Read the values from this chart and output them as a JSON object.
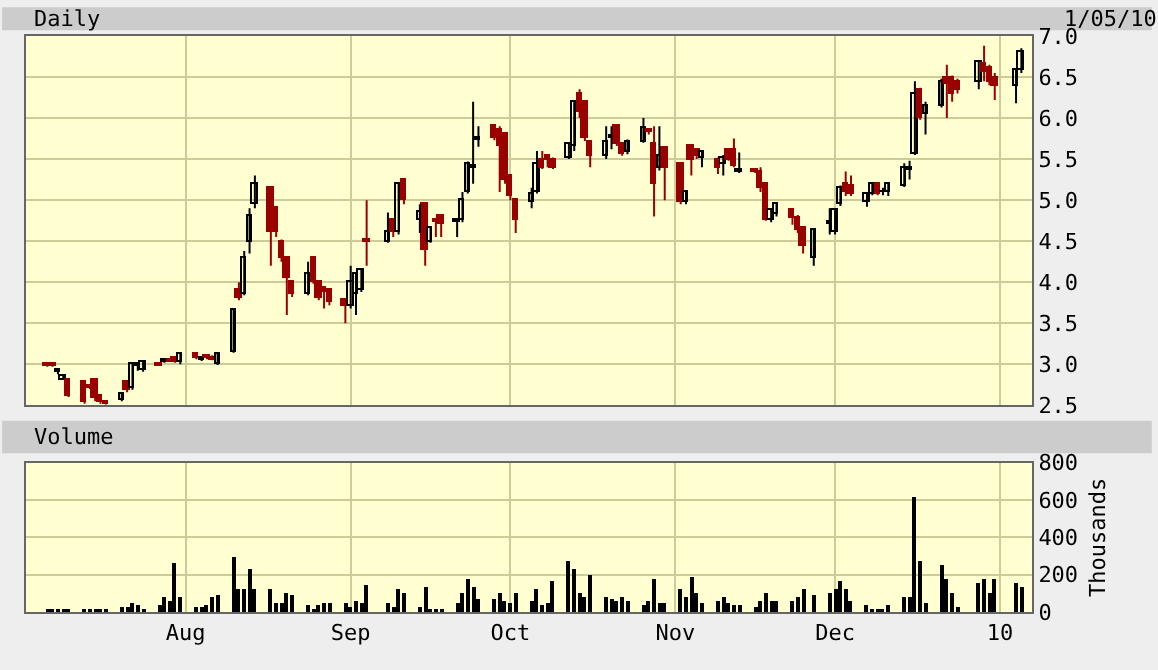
{
  "chart_data": [
    {
      "type": "candlestick",
      "title": "Daily",
      "annotations": [
        "1/05/10"
      ],
      "x": [
        "2009-07-06",
        "2009-07-07",
        "2009-07-08",
        "2009-07-09",
        "2009-07-10",
        "2009-07-13",
        "2009-07-14",
        "2009-07-15",
        "2009-07-16",
        "2009-07-17",
        "2009-07-20",
        "2009-07-21",
        "2009-07-22",
        "2009-07-23",
        "2009-07-24",
        "2009-07-27",
        "2009-07-28",
        "2009-07-29",
        "2009-07-30",
        "2009-07-31",
        "2009-08-03",
        "2009-08-04",
        "2009-08-05",
        "2009-08-06",
        "2009-08-07",
        "2009-08-10",
        "2009-08-11",
        "2009-08-12",
        "2009-08-13",
        "2009-08-14",
        "2009-08-17",
        "2009-08-18",
        "2009-08-19",
        "2009-08-20",
        "2009-08-21",
        "2009-08-24",
        "2009-08-25",
        "2009-08-26",
        "2009-08-27",
        "2009-08-28",
        "2009-08-31",
        "2009-09-01",
        "2009-09-02",
        "2009-09-03",
        "2009-09-04",
        "2009-09-08",
        "2009-09-09",
        "2009-09-10",
        "2009-09-11",
        "2009-09-14",
        "2009-09-15",
        "2009-09-16",
        "2009-09-17",
        "2009-09-18",
        "2009-09-21",
        "2009-09-22",
        "2009-09-23",
        "2009-09-24",
        "2009-09-25",
        "2009-09-28",
        "2009-09-29",
        "2009-09-30",
        "2009-10-01",
        "2009-10-02",
        "2009-10-05",
        "2009-10-06",
        "2009-10-07",
        "2009-10-08",
        "2009-10-09",
        "2009-10-12",
        "2009-10-13",
        "2009-10-14",
        "2009-10-15",
        "2009-10-16",
        "2009-10-19",
        "2009-10-20",
        "2009-10-21",
        "2009-10-22",
        "2009-10-23",
        "2009-10-26",
        "2009-10-27",
        "2009-10-28",
        "2009-10-29",
        "2009-10-30",
        "2009-11-02",
        "2009-11-03",
        "2009-11-04",
        "2009-11-05",
        "2009-11-06",
        "2009-11-09",
        "2009-11-10",
        "2009-11-11",
        "2009-11-12",
        "2009-11-13",
        "2009-11-16",
        "2009-11-17",
        "2009-11-18",
        "2009-11-19",
        "2009-11-20",
        "2009-11-23",
        "2009-11-24",
        "2009-11-25",
        "2009-11-27",
        "2009-11-30",
        "2009-12-01",
        "2009-12-02",
        "2009-12-03",
        "2009-12-04",
        "2009-12-07",
        "2009-12-08",
        "2009-12-09",
        "2009-12-10",
        "2009-12-11",
        "2009-12-14",
        "2009-12-15",
        "2009-12-16",
        "2009-12-17",
        "2009-12-18",
        "2009-12-21",
        "2009-12-22",
        "2009-12-23",
        "2009-12-24",
        "2009-12-28",
        "2009-12-29",
        "2009-12-30",
        "2009-12-31",
        "2010-01-04",
        "2010-01-05"
      ],
      "ohlc": [
        [
          3.0,
          3.02,
          2.97,
          2.98
        ],
        [
          3.0,
          3.02,
          2.97,
          2.98
        ],
        [
          2.91,
          2.95,
          2.88,
          2.93
        ],
        [
          2.82,
          2.87,
          2.81,
          2.86
        ],
        [
          2.8,
          2.81,
          2.6,
          2.62
        ],
        [
          2.78,
          2.8,
          2.52,
          2.54
        ],
        [
          2.74,
          2.76,
          2.7,
          2.72
        ],
        [
          2.8,
          2.82,
          2.55,
          2.58
        ],
        [
          2.62,
          2.63,
          2.52,
          2.54
        ],
        [
          2.53,
          2.54,
          2.51,
          2.52
        ],
        [
          2.56,
          2.66,
          2.55,
          2.65
        ],
        [
          2.78,
          2.8,
          2.66,
          2.68
        ],
        [
          2.7,
          3.02,
          2.69,
          3.0
        ],
        [
          2.98,
          3.02,
          2.92,
          3.0
        ],
        [
          2.92,
          3.03,
          2.91,
          3.02
        ],
        [
          3.0,
          3.01,
          2.98,
          2.99
        ],
        [
          3.03,
          3.06,
          3.02,
          3.05
        ],
        [
          3.06,
          3.07,
          3.03,
          3.04
        ],
        [
          3.08,
          3.1,
          3.02,
          3.04
        ],
        [
          3.02,
          3.15,
          3.0,
          3.12
        ],
        [
          3.12,
          3.15,
          3.06,
          3.08
        ],
        [
          3.05,
          3.09,
          3.04,
          3.08
        ],
        [
          3.09,
          3.1,
          3.06,
          3.07
        ],
        [
          3.08,
          3.11,
          3.05,
          3.06
        ],
        [
          3.0,
          3.14,
          2.99,
          3.12
        ],
        [
          3.15,
          3.66,
          3.14,
          3.65
        ],
        [
          3.9,
          4.0,
          3.78,
          3.82
        ],
        [
          3.85,
          4.38,
          3.84,
          4.3
        ],
        [
          4.5,
          4.9,
          4.35,
          4.8
        ],
        [
          4.95,
          5.3,
          4.9,
          5.2
        ],
        [
          5.15,
          5.17,
          4.2,
          4.6
        ],
        [
          4.9,
          4.92,
          4.55,
          4.6
        ],
        [
          4.5,
          4.52,
          4.25,
          4.3
        ],
        [
          4.3,
          4.32,
          3.6,
          4.05
        ],
        [
          4.0,
          4.02,
          3.82,
          3.85
        ],
        [
          3.85,
          4.25,
          3.84,
          4.1
        ],
        [
          4.3,
          4.32,
          3.98,
          4.0
        ],
        [
          4.0,
          4.02,
          3.78,
          3.8
        ],
        [
          3.92,
          3.93,
          3.68,
          3.88
        ],
        [
          3.9,
          3.92,
          3.72,
          3.75
        ],
        [
          3.78,
          3.8,
          3.5,
          3.72
        ],
        [
          3.7,
          4.2,
          3.68,
          4.0
        ],
        [
          3.85,
          4.12,
          3.6,
          4.1
        ],
        [
          3.9,
          4.17,
          3.88,
          4.15
        ],
        [
          4.52,
          5.0,
          4.2,
          4.48
        ],
        [
          4.5,
          4.85,
          4.48,
          4.6
        ],
        [
          4.75,
          4.78,
          4.55,
          4.6
        ],
        [
          4.6,
          5.22,
          4.58,
          5.2
        ],
        [
          5.25,
          5.27,
          4.95,
          5.0
        ],
        [
          4.75,
          4.95,
          4.6,
          4.85
        ],
        [
          4.95,
          4.97,
          4.2,
          4.4
        ],
        [
          4.5,
          4.68,
          4.48,
          4.65
        ],
        [
          4.76,
          4.77,
          4.55,
          4.74
        ],
        [
          4.8,
          4.82,
          4.55,
          4.7
        ],
        [
          4.74,
          4.78,
          4.55,
          4.76
        ],
        [
          4.75,
          5.1,
          4.73,
          5.0
        ],
        [
          5.1,
          5.47,
          5.08,
          5.45
        ],
        [
          5.38,
          6.2,
          5.2,
          5.41
        ],
        [
          5.74,
          5.9,
          5.65,
          5.76
        ],
        [
          5.9,
          5.92,
          5.73,
          5.75
        ],
        [
          5.85,
          5.9,
          5.1,
          5.65
        ],
        [
          5.8,
          5.82,
          5.2,
          5.25
        ],
        [
          5.3,
          5.32,
          5.0,
          5.05
        ],
        [
          5.0,
          5.02,
          4.6,
          4.75
        ],
        [
          4.98,
          5.15,
          4.9,
          5.08
        ],
        [
          5.1,
          5.6,
          5.08,
          5.45
        ],
        [
          5.5,
          5.6,
          5.38,
          5.4
        ],
        [
          5.53,
          5.55,
          5.4,
          5.5
        ],
        [
          5.5,
          5.52,
          5.38,
          5.4
        ],
        [
          5.52,
          5.7,
          5.5,
          5.68
        ],
        [
          5.65,
          6.22,
          5.6,
          6.2
        ],
        [
          6.3,
          6.35,
          6.0,
          6.08
        ],
        [
          6.2,
          6.22,
          5.72,
          5.75
        ],
        [
          5.7,
          5.72,
          5.4,
          5.55
        ],
        [
          5.55,
          5.9,
          5.5,
          5.72
        ],
        [
          5.76,
          5.9,
          5.62,
          5.78
        ],
        [
          5.9,
          5.92,
          5.66,
          5.68
        ],
        [
          5.68,
          5.7,
          5.54,
          5.56
        ],
        [
          5.58,
          5.74,
          5.56,
          5.72
        ],
        [
          5.72,
          6.0,
          5.7,
          5.88
        ],
        [
          5.86,
          5.88,
          5.8,
          5.84
        ],
        [
          5.68,
          5.9,
          4.8,
          5.2
        ],
        [
          5.38,
          5.9,
          5.36,
          5.55
        ],
        [
          5.63,
          5.65,
          5.0,
          5.38
        ],
        [
          5.43,
          5.45,
          4.95,
          4.98
        ],
        [
          4.98,
          5.12,
          4.95,
          5.1
        ],
        [
          5.65,
          5.67,
          5.3,
          5.5
        ],
        [
          5.6,
          5.62,
          5.5,
          5.55
        ],
        [
          5.52,
          5.6,
          5.4,
          5.58
        ],
        [
          5.5,
          5.52,
          5.32,
          5.4
        ],
        [
          5.45,
          5.55,
          5.3,
          5.52
        ],
        [
          5.6,
          5.62,
          5.48,
          5.5
        ],
        [
          5.6,
          5.75,
          5.4,
          5.42
        ],
        [
          5.34,
          5.58,
          5.33,
          5.36
        ],
        [
          5.36,
          5.38,
          5.33,
          5.35
        ],
        [
          5.35,
          5.4,
          5.1,
          5.15
        ],
        [
          5.2,
          5.22,
          4.75,
          4.76
        ],
        [
          4.75,
          4.9,
          4.73,
          4.88
        ],
        [
          4.83,
          4.96,
          4.8,
          4.95
        ],
        [
          4.88,
          4.9,
          4.7,
          4.78
        ],
        [
          4.78,
          4.82,
          4.6,
          4.63
        ],
        [
          4.65,
          4.67,
          4.35,
          4.45
        ],
        [
          4.3,
          4.65,
          4.2,
          4.63
        ],
        [
          4.72,
          4.9,
          4.58,
          4.74
        ],
        [
          4.6,
          4.9,
          4.58,
          4.88
        ],
        [
          4.95,
          5.18,
          4.93,
          5.15
        ],
        [
          5.2,
          5.35,
          5.05,
          5.1
        ],
        [
          5.18,
          5.3,
          5.05,
          5.07
        ],
        [
          4.98,
          5.1,
          4.92,
          5.08
        ],
        [
          5.08,
          5.22,
          5.06,
          5.2
        ],
        [
          5.2,
          5.22,
          5.06,
          5.08
        ],
        [
          5.09,
          5.15,
          5.06,
          5.11
        ],
        [
          5.1,
          5.22,
          5.05,
          5.2
        ],
        [
          5.18,
          5.45,
          5.16,
          5.4
        ],
        [
          5.37,
          5.48,
          5.25,
          5.39
        ],
        [
          5.57,
          6.45,
          5.55,
          6.3
        ],
        [
          6.35,
          6.37,
          5.98,
          6.0
        ],
        [
          6.05,
          6.2,
          5.8,
          6.15
        ],
        [
          6.15,
          6.48,
          6.13,
          6.45
        ],
        [
          6.5,
          6.65,
          6.0,
          6.42
        ],
        [
          6.5,
          6.52,
          6.2,
          6.3
        ],
        [
          6.43,
          6.48,
          6.3,
          6.33
        ],
        [
          6.45,
          6.7,
          6.35,
          6.68
        ],
        [
          6.65,
          6.88,
          6.45,
          6.55
        ],
        [
          6.6,
          6.65,
          6.4,
          6.43
        ],
        [
          6.5,
          6.55,
          6.22,
          6.4
        ],
        [
          6.38,
          6.6,
          6.18,
          6.58
        ],
        [
          6.58,
          6.85,
          6.55,
          6.8
        ]
      ],
      "xlim": [
        "2009-07-02",
        "2010-01-07"
      ],
      "xticks": [
        {
          "value": "2009-08-01",
          "label": null
        },
        {
          "value": "2009-09-01",
          "label": null
        },
        {
          "value": "2009-10-01",
          "label": null
        },
        {
          "value": "2009-11-01",
          "label": null
        },
        {
          "value": "2009-12-01",
          "label": null
        },
        {
          "value": "2010-01-01",
          "label": null
        }
      ],
      "ylim": [
        2.5,
        7.0
      ],
      "yticks": [
        {
          "value": 2.5,
          "label": "2.5"
        },
        {
          "value": 3,
          "label": "3.0"
        },
        {
          "value": 3.5,
          "label": "3.5"
        },
        {
          "value": 4,
          "label": "4.0"
        },
        {
          "value": 4.5,
          "label": "4.5"
        },
        {
          "value": 5,
          "label": "5.0"
        },
        {
          "value": 5.5,
          "label": "5.5"
        },
        {
          "value": 6,
          "label": "6.0"
        },
        {
          "value": 6.5,
          "label": "6.5"
        },
        {
          "value": 7,
          "label": "7.0"
        }
      ],
      "tick_labels": "y",
      "grid": true
    },
    {
      "type": "bar",
      "title": "Volume",
      "ylabel": "Thousands",
      "x": [
        "2009-07-06",
        "2009-07-07",
        "2009-07-08",
        "2009-07-09",
        "2009-07-10",
        "2009-07-13",
        "2009-07-14",
        "2009-07-15",
        "2009-07-16",
        "2009-07-17",
        "2009-07-20",
        "2009-07-21",
        "2009-07-22",
        "2009-07-23",
        "2009-07-24",
        "2009-07-27",
        "2009-07-28",
        "2009-07-29",
        "2009-07-30",
        "2009-07-31",
        "2009-08-03",
        "2009-08-04",
        "2009-08-05",
        "2009-08-06",
        "2009-08-07",
        "2009-08-10",
        "2009-08-11",
        "2009-08-12",
        "2009-08-13",
        "2009-08-14",
        "2009-08-17",
        "2009-08-18",
        "2009-08-19",
        "2009-08-20",
        "2009-08-21",
        "2009-08-24",
        "2009-08-25",
        "2009-08-26",
        "2009-08-27",
        "2009-08-28",
        "2009-08-31",
        "2009-09-01",
        "2009-09-02",
        "2009-09-03",
        "2009-09-04",
        "2009-09-08",
        "2009-09-09",
        "2009-09-10",
        "2009-09-11",
        "2009-09-14",
        "2009-09-15",
        "2009-09-16",
        "2009-09-17",
        "2009-09-18",
        "2009-09-21",
        "2009-09-22",
        "2009-09-23",
        "2009-09-24",
        "2009-09-25",
        "2009-09-28",
        "2009-09-29",
        "2009-09-30",
        "2009-10-01",
        "2009-10-02",
        "2009-10-05",
        "2009-10-06",
        "2009-10-07",
        "2009-10-08",
        "2009-10-09",
        "2009-10-12",
        "2009-10-13",
        "2009-10-14",
        "2009-10-15",
        "2009-10-16",
        "2009-10-19",
        "2009-10-20",
        "2009-10-21",
        "2009-10-22",
        "2009-10-23",
        "2009-10-26",
        "2009-10-27",
        "2009-10-28",
        "2009-10-29",
        "2009-10-30",
        "2009-11-02",
        "2009-11-03",
        "2009-11-04",
        "2009-11-05",
        "2009-11-06",
        "2009-11-09",
        "2009-11-10",
        "2009-11-11",
        "2009-11-12",
        "2009-11-13",
        "2009-11-16",
        "2009-11-17",
        "2009-11-18",
        "2009-11-19",
        "2009-11-20",
        "2009-11-23",
        "2009-11-24",
        "2009-11-25",
        "2009-11-27",
        "2009-11-30",
        "2009-12-01",
        "2009-12-02",
        "2009-12-03",
        "2009-12-04",
        "2009-12-07",
        "2009-12-08",
        "2009-12-09",
        "2009-12-10",
        "2009-12-11",
        "2009-12-14",
        "2009-12-15",
        "2009-12-16",
        "2009-12-17",
        "2009-12-18",
        "2009-12-21",
        "2009-12-22",
        "2009-12-23",
        "2009-12-24",
        "2009-12-28",
        "2009-12-29",
        "2009-12-30",
        "2009-12-31",
        "2010-01-04",
        "2010-01-05"
      ],
      "series": [
        {
          "color": "#000000",
          "values": [
            10,
            10,
            10,
            10,
            20,
            20,
            10,
            20,
            10,
            10,
            30,
            30,
            50,
            40,
            20,
            40,
            80,
            60,
            260,
            80,
            30,
            30,
            40,
            80,
            90,
            300,
            130,
            130,
            230,
            120,
            120,
            50,
            50,
            100,
            90,
            40,
            20,
            40,
            50,
            50,
            50,
            30,
            60,
            50,
            150,
            50,
            30,
            130,
            100,
            30,
            140,
            10,
            10,
            10,
            50,
            100,
            180,
            140,
            70,
            70,
            100,
            60,
            50,
            100,
            60,
            120,
            40,
            50,
            170,
            270,
            230,
            100,
            80,
            200,
            80,
            70,
            60,
            80,
            60,
            40,
            60,
            180,
            50,
            50,
            120,
            80,
            190,
            100,
            50,
            60,
            80,
            50,
            40,
            40,
            30,
            60,
            100,
            60,
            60,
            60,
            80,
            120,
            90,
            100,
            130,
            170,
            130,
            60,
            40,
            20,
            20,
            20,
            40,
            80,
            80,
            620,
            280,
            50,
            250,
            180,
            100,
            30,
            160,
            180,
            100,
            180,
            160,
            140
          ]
        }
      ],
      "xlim": [
        "2009-07-02",
        "2010-01-07"
      ],
      "xticks": [
        {
          "value": "2009-08-01",
          "label": "Aug"
        },
        {
          "value": "2009-09-01",
          "label": "Sep"
        },
        {
          "value": "2009-10-01",
          "label": "Oct"
        },
        {
          "value": "2009-11-01",
          "label": "Nov"
        },
        {
          "value": "2009-12-01",
          "label": "Dec"
        },
        {
          "value": "2010-01-01",
          "label": "10"
        }
      ],
      "ylim": [
        0,
        800
      ],
      "yticks": [
        0,
        200,
        400,
        600,
        800
      ],
      "grid": true
    }
  ]
}
